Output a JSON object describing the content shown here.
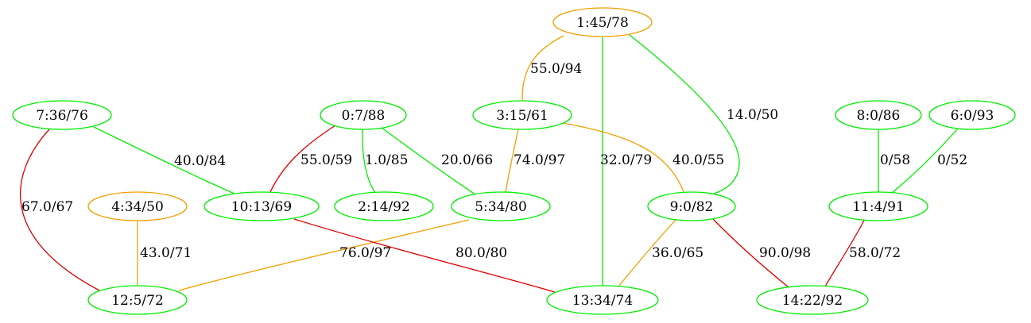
{
  "colors": {
    "green": "#00ee00",
    "orange": "#f0a000",
    "red": "#e00000"
  },
  "nodes": [
    {
      "id": "n1",
      "label": "1:45/78",
      "color": "orange"
    },
    {
      "id": "n7",
      "label": "7:36/76",
      "color": "green"
    },
    {
      "id": "n0",
      "label": "0:7/88",
      "color": "green"
    },
    {
      "id": "n3",
      "label": "3:15/61",
      "color": "green"
    },
    {
      "id": "n8",
      "label": "8:0/86",
      "color": "green"
    },
    {
      "id": "n6",
      "label": "6:0/93",
      "color": "green"
    },
    {
      "id": "n4",
      "label": "4:34/50",
      "color": "orange"
    },
    {
      "id": "n10",
      "label": "10:13/69",
      "color": "green"
    },
    {
      "id": "n2",
      "label": "2:14/92",
      "color": "green"
    },
    {
      "id": "n5",
      "label": "5:34/80",
      "color": "green"
    },
    {
      "id": "n9",
      "label": "9:0/82",
      "color": "green"
    },
    {
      "id": "n11",
      "label": "11:4/91",
      "color": "green"
    },
    {
      "id": "n12",
      "label": "12:5/72",
      "color": "green"
    },
    {
      "id": "n13",
      "label": "13:34/74",
      "color": "green"
    },
    {
      "id": "n14",
      "label": "14:22/92",
      "color": "green"
    }
  ],
  "edges": [
    {
      "id": "e1-3",
      "label": "55.0/94",
      "color": "orange"
    },
    {
      "id": "e1-13",
      "label": "32.0/79",
      "color": "green"
    },
    {
      "id": "e1-9",
      "label": "14.0/50",
      "color": "green"
    },
    {
      "id": "e7-10",
      "label": "40.0/84",
      "color": "green"
    },
    {
      "id": "e7-12",
      "label": "67.0/67",
      "color": "red"
    },
    {
      "id": "e0-10",
      "label": "55.0/59",
      "color": "red"
    },
    {
      "id": "e0-2",
      "label": "1.0/85",
      "color": "green"
    },
    {
      "id": "e0-5",
      "label": "20.0/66",
      "color": "green"
    },
    {
      "id": "e3-5",
      "label": "74.0/97",
      "color": "orange"
    },
    {
      "id": "e3-9",
      "label": "40.0/55",
      "color": "orange"
    },
    {
      "id": "e8-11",
      "label": "0/58",
      "color": "green"
    },
    {
      "id": "e6-11",
      "label": "0/52",
      "color": "green"
    },
    {
      "id": "e4-12",
      "label": "43.0/71",
      "color": "orange"
    },
    {
      "id": "e5-12",
      "label": "76.0/97",
      "color": "orange"
    },
    {
      "id": "e10-13",
      "label": "80.0/80",
      "color": "red"
    },
    {
      "id": "e9-13",
      "label": "36.0/65",
      "color": "orange"
    },
    {
      "id": "e9-14",
      "label": "90.0/98",
      "color": "red"
    },
    {
      "id": "e11-14",
      "label": "58.0/72",
      "color": "red"
    }
  ]
}
